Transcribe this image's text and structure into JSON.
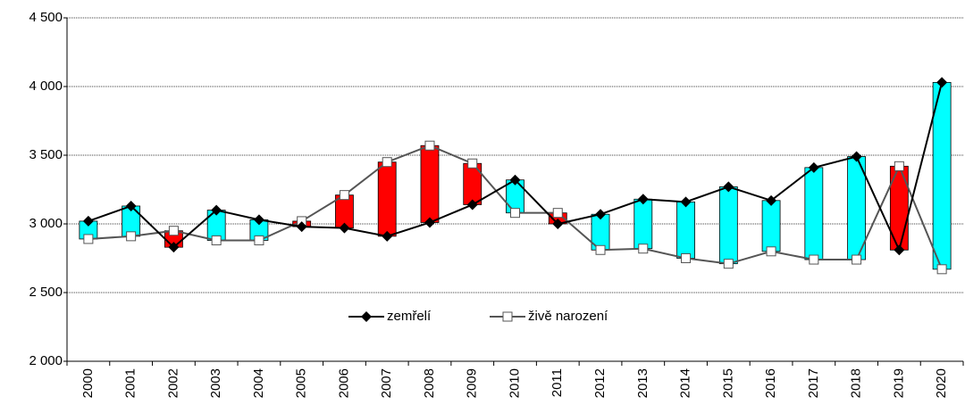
{
  "chart_data": {
    "type": "line",
    "categories": [
      "2000",
      "2001",
      "2002",
      "2003",
      "2004",
      "2005",
      "2006",
      "2007",
      "2008",
      "2009",
      "2010",
      "2011",
      "2012",
      "2013",
      "2014",
      "2015",
      "2016",
      "2017",
      "2018",
      "2019",
      "2020"
    ],
    "series": [
      {
        "name": "zemřelí",
        "color": "#000000",
        "marker": "diamond",
        "values": [
          3020,
          3130,
          2830,
          3100,
          3030,
          2980,
          2970,
          2910,
          3010,
          3140,
          3320,
          3000,
          3070,
          3180,
          3160,
          3270,
          3170,
          3410,
          3490,
          2810,
          4030
        ]
      },
      {
        "name": "živě narození",
        "color": "#555555",
        "marker": "square",
        "values": [
          2890,
          2910,
          2950,
          2880,
          2880,
          3020,
          3210,
          3450,
          3570,
          3440,
          3080,
          3080,
          2810,
          2820,
          2750,
          2710,
          2800,
          2740,
          2740,
          3420,
          2670
        ]
      }
    ],
    "up_down_bars": {
      "first_higher_color": "#00ffff",
      "second_higher_color": "#ff0000"
    },
    "ylim": [
      2000,
      4500
    ],
    "yticks": [
      {
        "value": 2000,
        "label": "2 000"
      },
      {
        "value": 2500,
        "label": "2 500"
      },
      {
        "value": 3000,
        "label": "3 000"
      },
      {
        "value": 3500,
        "label": "3 500"
      },
      {
        "value": 4000,
        "label": "4 000"
      },
      {
        "value": 4500,
        "label": "4 500"
      }
    ],
    "grid": true,
    "legend": "bottom"
  }
}
